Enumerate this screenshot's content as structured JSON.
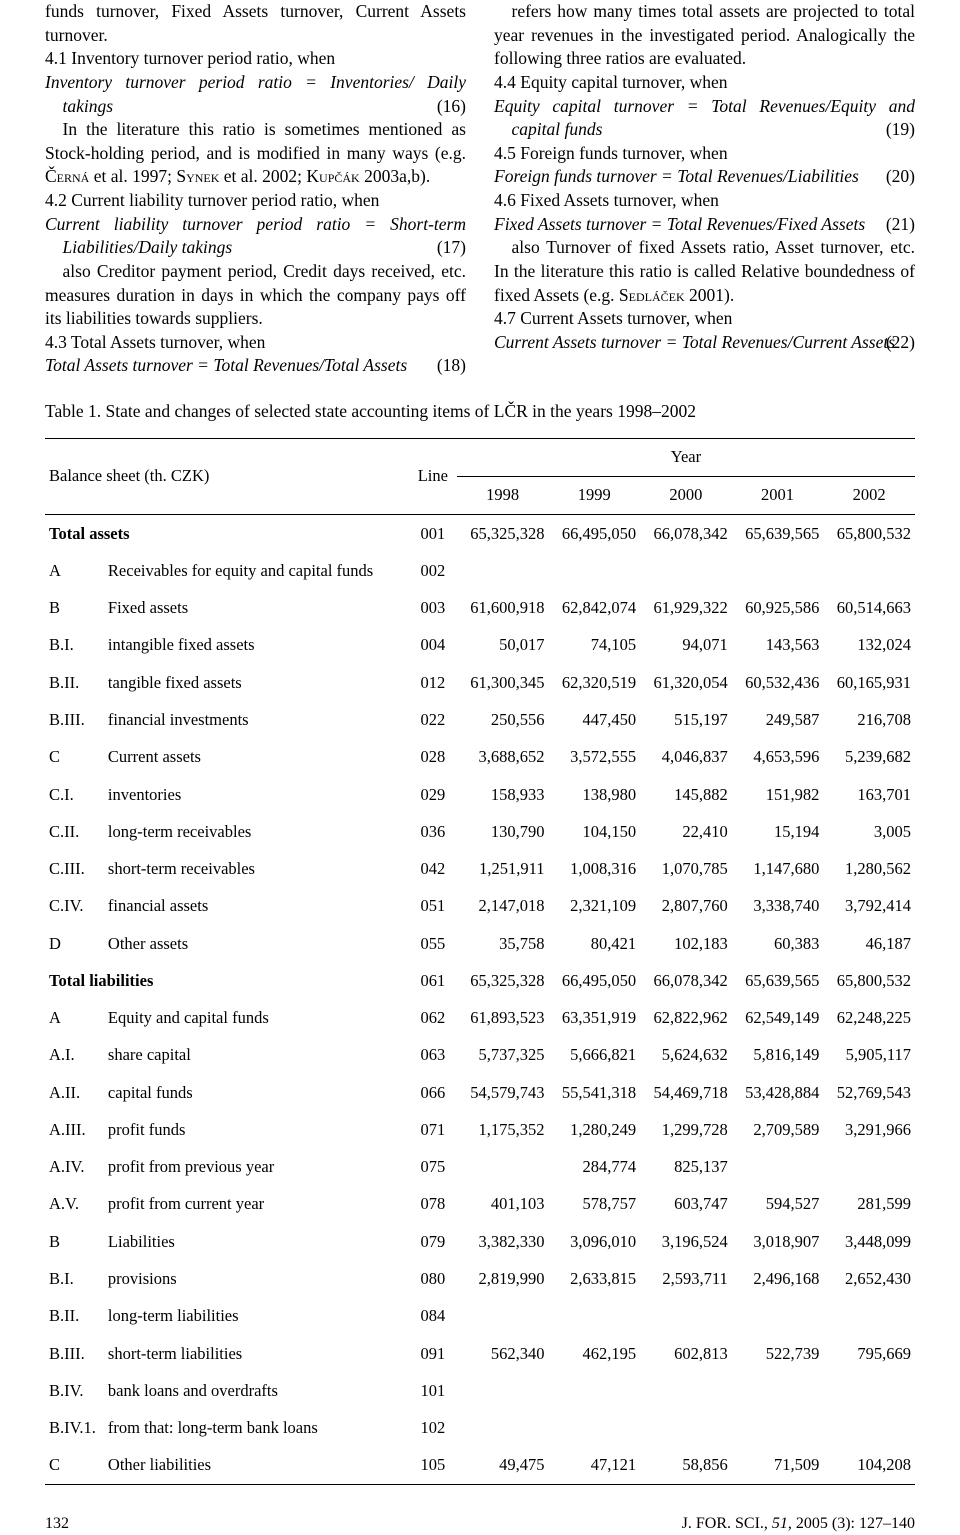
{
  "left_col": {
    "p1": "funds turnover, Fixed Assets turnover, Current Assets turnover.",
    "p2": "4.1 Inventory turnover period ratio, when",
    "eq16_a": "Inventory turnover period ratio = Inventories/",
    "eq16_b": "Daily takings",
    "eq16_num": "(16)",
    "p3a": "In the literature this ratio is sometimes mentioned as Stock-holding period, and is modified in many ways (e.g. ",
    "p3b": " et al. 1997; ",
    "p3c": " et al. 2002; ",
    "p3d": " 2003a,b).",
    "sc1": "Černá",
    "sc2": "Synek",
    "sc3": "Kupčák",
    "p4": "4.2 Current liability turnover period ratio, when",
    "eq17_a": "Current liability turnover period ratio = Short-term Liabilities/Daily takings",
    "eq17_num": "(17)",
    "p5": "also Creditor payment period, Credit days received, etc. measures duration in days in which the company pays off its liabilities towards suppliers.",
    "p6": "4.3 Total Assets turnover, when",
    "eq18_a": "Total Assets turnover = Total Revenues/Total Assets",
    "eq18_num": "(18)"
  },
  "right_col": {
    "p1": "refers how many times total assets are projected to total year revenues in the investigated period. Analogically the following three ratios are evaluated.",
    "p2": "4.4 Equity capital turnover, when",
    "eq19_a": "Equity capital turnover = Total Revenues/Equity and capital funds",
    "eq19_num": "(19)",
    "p3": "4.5 Foreign funds turnover, when",
    "eq20_a": "Foreign funds turnover = Total Revenues/Liabilities",
    "eq20_num": "(20)",
    "p4": "4.6 Fixed Assets turnover, when",
    "eq21_a": "Fixed Assets turnover = Total Revenues/Fixed Assets",
    "eq21_num": "(21)",
    "p5a": "also Turnover of fixed Assets ratio, Asset turnover, etc. In the literature this ratio is called Relative boundedness of fixed Assets (e.g. ",
    "p5b": " 2001).",
    "sc4": "Sedláček",
    "p6": "4.7 Current Assets turnover, when",
    "eq22_a": "Current Assets turnover = Total Revenues/Current Assets",
    "eq22_num": "(22)"
  },
  "table": {
    "caption": "Table 1. State and changes of selected state accounting items of LČR in the years 1998–2002",
    "head_balance": "Balance sheet (th. CZK)",
    "head_line": "Line",
    "head_year": "Year",
    "years": [
      "1998",
      "1999",
      "2000",
      "2001",
      "2002"
    ],
    "rows": [
      {
        "code": "",
        "label": "Total assets",
        "bold": true,
        "line": "001",
        "v": [
          "65,325,328",
          "66,495,050",
          "66,078,342",
          "65,639,565",
          "65,800,532"
        ]
      },
      {
        "code": "A",
        "label": "Receivables for equity and capital funds",
        "line": "002",
        "v": [
          "",
          "",
          "",
          "",
          ""
        ]
      },
      {
        "code": "B",
        "label": "Fixed assets",
        "line": "003",
        "v": [
          "61,600,918",
          "62,842,074",
          "61,929,322",
          "60,925,586",
          "60,514,663"
        ]
      },
      {
        "code": "B.I.",
        "label": "intangible fixed assets",
        "line": "004",
        "v": [
          "50,017",
          "74,105",
          "94,071",
          "143,563",
          "132,024"
        ]
      },
      {
        "code": "B.II.",
        "label": "tangible fixed assets",
        "line": "012",
        "v": [
          "61,300,345",
          "62,320,519",
          "61,320,054",
          "60,532,436",
          "60,165,931"
        ]
      },
      {
        "code": "B.III.",
        "label": "financial investments",
        "line": "022",
        "v": [
          "250,556",
          "447,450",
          "515,197",
          "249,587",
          "216,708"
        ]
      },
      {
        "code": "C",
        "label": "Current assets",
        "line": "028",
        "v": [
          "3,688,652",
          "3,572,555",
          "4,046,837",
          "4,653,596",
          "5,239,682"
        ]
      },
      {
        "code": "C.I.",
        "label": "inventories",
        "line": "029",
        "v": [
          "158,933",
          "138,980",
          "145,882",
          "151,982",
          "163,701"
        ]
      },
      {
        "code": "C.II.",
        "label": "long-term receivables",
        "line": "036",
        "v": [
          "130,790",
          "104,150",
          "22,410",
          "15,194",
          "3,005"
        ]
      },
      {
        "code": "C.III.",
        "label": "short-term receivables",
        "line": "042",
        "v": [
          "1,251,911",
          "1,008,316",
          "1,070,785",
          "1,147,680",
          "1,280,562"
        ]
      },
      {
        "code": "C.IV.",
        "label": "financial assets",
        "line": "051",
        "v": [
          "2,147,018",
          "2,321,109",
          "2,807,760",
          "3,338,740",
          "3,792,414"
        ]
      },
      {
        "code": "D",
        "label": "Other assets",
        "line": "055",
        "v": [
          "35,758",
          "80,421",
          "102,183",
          "60,383",
          "46,187"
        ]
      },
      {
        "code": "",
        "label": "Total liabilities",
        "bold": true,
        "line": "061",
        "v": [
          "65,325,328",
          "66,495,050",
          "66,078,342",
          "65,639,565",
          "65,800,532"
        ]
      },
      {
        "code": "A",
        "label": "Equity and capital funds",
        "line": "062",
        "v": [
          "61,893,523",
          "63,351,919",
          "62,822,962",
          "62,549,149",
          "62,248,225"
        ]
      },
      {
        "code": "A.I.",
        "label": "share capital",
        "line": "063",
        "v": [
          "5,737,325",
          "5,666,821",
          "5,624,632",
          "5,816,149",
          "5,905,117"
        ]
      },
      {
        "code": "A.II.",
        "label": "capital funds",
        "line": "066",
        "v": [
          "54,579,743",
          "55,541,318",
          "54,469,718",
          "53,428,884",
          "52,769,543"
        ]
      },
      {
        "code": "A.III.",
        "label": "profit funds",
        "line": "071",
        "v": [
          "1,175,352",
          "1,280,249",
          "1,299,728",
          "2,709,589",
          "3,291,966"
        ]
      },
      {
        "code": "A.IV.",
        "label": "profit from previous year",
        "line": "075",
        "v": [
          "",
          "284,774",
          "825,137",
          "",
          ""
        ]
      },
      {
        "code": "A.V.",
        "label": "profit from current year",
        "line": "078",
        "v": [
          "401,103",
          "578,757",
          "603,747",
          "594,527",
          "281,599"
        ]
      },
      {
        "code": "B",
        "label": "Liabilities",
        "line": "079",
        "v": [
          "3,382,330",
          "3,096,010",
          "3,196,524",
          "3,018,907",
          "3,448,099"
        ]
      },
      {
        "code": "B.I.",
        "label": "provisions",
        "line": "080",
        "v": [
          "2,819,990",
          "2,633,815",
          "2,593,711",
          "2,496,168",
          "2,652,430"
        ]
      },
      {
        "code": "B.II.",
        "label": "long-term liabilities",
        "line": "084",
        "v": [
          "",
          "",
          "",
          "",
          ""
        ]
      },
      {
        "code": "B.III.",
        "label": "short-term liabilities",
        "line": "091",
        "v": [
          "562,340",
          "462,195",
          "602,813",
          "522,739",
          "795,669"
        ]
      },
      {
        "code": "B.IV.",
        "label": "bank loans and overdrafts",
        "line": "101",
        "v": [
          "",
          "",
          "",
          "",
          ""
        ]
      },
      {
        "code": "B.IV.1.",
        "label": "from that: long-term bank loans",
        "line": "102",
        "v": [
          "",
          "",
          "",
          "",
          ""
        ]
      },
      {
        "code": "C",
        "label": "Other liabilities",
        "line": "105",
        "v": [
          "49,475",
          "47,121",
          "58,856",
          "71,509",
          "104,208"
        ]
      }
    ]
  },
  "footer": {
    "page": "132",
    "cite": "J. FOR. SCI., 51, 2005 (3): 127–140"
  },
  "style": {
    "text_color": "#000000",
    "bg_color": "#ffffff",
    "body_font_size_pt": 13,
    "table_font_size_pt": 12.5,
    "line_color": "#000000"
  }
}
